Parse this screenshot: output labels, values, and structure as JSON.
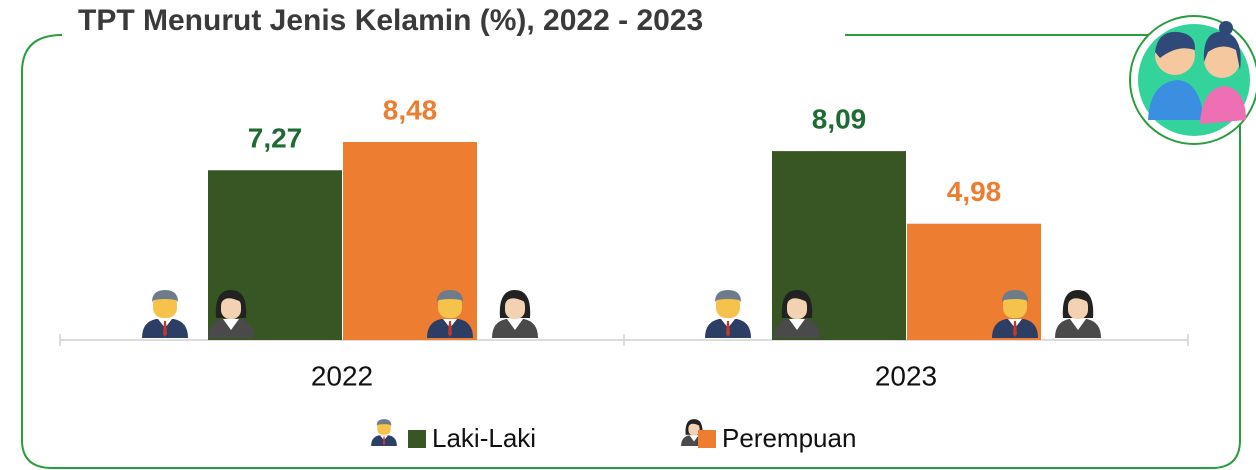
{
  "chart_data": {
    "type": "bar",
    "title": "TPT Menurut Jenis Kelamin (%), 2022 - 2023",
    "categories": [
      "2022",
      "2023"
    ],
    "series": [
      {
        "name": "Laki-Laki",
        "color": "#375623",
        "values": [
          7.27,
          8.09
        ],
        "value_labels": [
          "7,27",
          "8,09"
        ]
      },
      {
        "name": "Perempuan",
        "color": "#ed7d31",
        "values": [
          8.48,
          4.98
        ],
        "value_labels": [
          "8,48",
          "4,98"
        ]
      }
    ]
  }
}
